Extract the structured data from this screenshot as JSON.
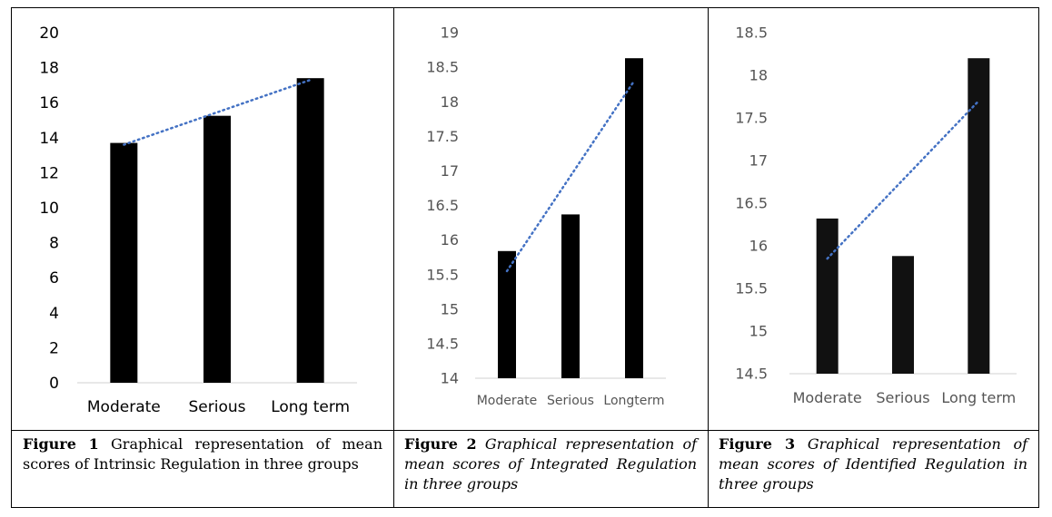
{
  "chart_data": [
    {
      "type": "bar",
      "categories": [
        "Moderate",
        "Serious",
        "Long term"
      ],
      "values": [
        13.7,
        15.25,
        17.4
      ],
      "trendline": {
        "style": "dotted-linear",
        "start": 13.6,
        "end": 17.3
      },
      "ylim": [
        0,
        20
      ],
      "yticks": [
        0,
        2,
        4,
        6,
        8,
        10,
        12,
        14,
        16,
        18,
        20
      ],
      "ytick_labels": [
        "0",
        "2",
        "4",
        "6",
        "8",
        "10",
        "12",
        "14",
        "16",
        "18",
        "20"
      ],
      "grid": false,
      "bar_color": "#000000",
      "trend_color": "#4472c4"
    },
    {
      "type": "bar",
      "categories": [
        "Moderate",
        "Serious",
        "Longterm"
      ],
      "values": [
        15.84,
        16.37,
        18.63
      ],
      "trendline": {
        "style": "dotted-linear",
        "start": 15.55,
        "end": 18.3
      },
      "ylim": [
        14,
        19
      ],
      "yticks": [
        14,
        14.5,
        15,
        15.5,
        16,
        16.5,
        17,
        17.5,
        18,
        18.5,
        19
      ],
      "ytick_labels": [
        "14",
        "14.5",
        "15",
        "15.5",
        "16",
        "16.5",
        "17",
        "17.5",
        "18",
        "18.5",
        "19"
      ],
      "grid": false,
      "bar_color": "#000000",
      "trend_color": "#4472c4"
    },
    {
      "type": "bar",
      "categories": [
        "Moderate",
        "Serious",
        "Long term"
      ],
      "values": [
        16.32,
        15.88,
        18.2
      ],
      "trendline": {
        "style": "dotted-linear",
        "start": 15.85,
        "end": 17.7
      },
      "ylim": [
        14.5,
        18.5
      ],
      "yticks": [
        14.5,
        15,
        15.5,
        16,
        16.5,
        17,
        17.5,
        18,
        18.5
      ],
      "ytick_labels": [
        "14.5",
        "15",
        "15.5",
        "16",
        "16.5",
        "17",
        "17.5",
        "18",
        "18.5"
      ],
      "grid": false,
      "bar_color": "#111111",
      "trend_color": "#4472c4"
    }
  ],
  "captions": [
    {
      "label": "Figure 1",
      "text": " Graphical representation of mean scores of Intrinsic Regulation in three groups",
      "italic": false
    },
    {
      "label": "Figure 2",
      "text": " Graphical representation of mean scores of Integrated Regulation in three groups",
      "italic": true
    },
    {
      "label": "Figure 3",
      "text": " Graphical representation of mean scores of Identified Regulation in three groups",
      "italic": true
    }
  ]
}
